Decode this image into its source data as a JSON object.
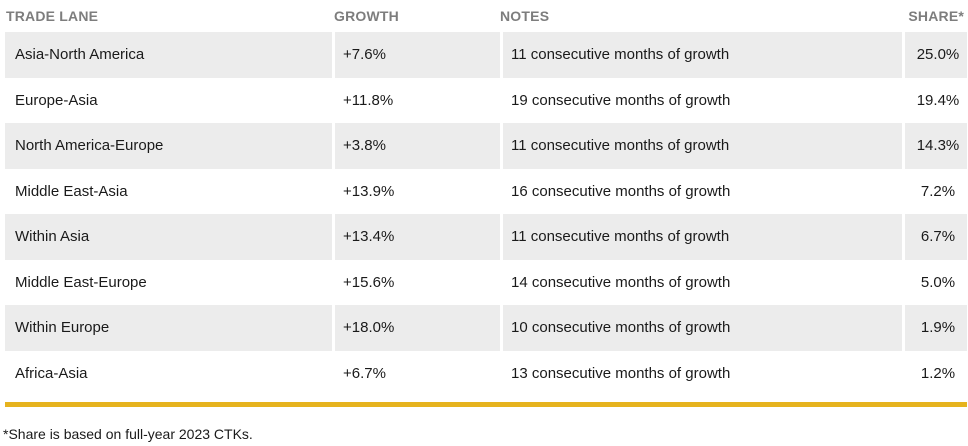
{
  "headers": {
    "lane": "TRADE LANE",
    "growth": "GROWTH",
    "notes": "NOTES",
    "share": "SHARE*"
  },
  "rows": [
    {
      "lane": "Asia-North America",
      "growth": "+7.6%",
      "notes": "11 consecutive months of growth",
      "share": "25.0%"
    },
    {
      "lane": "Europe-Asia",
      "growth": "+11.8%",
      "notes": "19 consecutive months of growth",
      "share": "19.4%"
    },
    {
      "lane": "North America-Europe",
      "growth": "+3.8%",
      "notes": "11 consecutive months of growth",
      "share": "14.3%"
    },
    {
      "lane": "Middle East-Asia",
      "growth": "+13.9%",
      "notes": "16 consecutive months of growth",
      "share": "7.2%"
    },
    {
      "lane": "Within Asia",
      "growth": "+13.4%",
      "notes": "11 consecutive months of growth",
      "share": "6.7%"
    },
    {
      "lane": "Middle East-Europe",
      "growth": "+15.6%",
      "notes": "14 consecutive months of growth",
      "share": "5.0%"
    },
    {
      "lane": "Within Europe",
      "growth": "+18.0%",
      "notes": "10 consecutive months of growth",
      "share": "1.9%"
    },
    {
      "lane": "Africa-Asia",
      "growth": "+6.7%",
      "notes": "13 consecutive months of growth",
      "share": "1.2%"
    }
  ],
  "footnote": "*Share is based on full-year 2023 CTKs.",
  "colors": {
    "row_shade": "#ececec",
    "accent_rule": "#e6b31e",
    "header_text": "#7d7d7d"
  }
}
